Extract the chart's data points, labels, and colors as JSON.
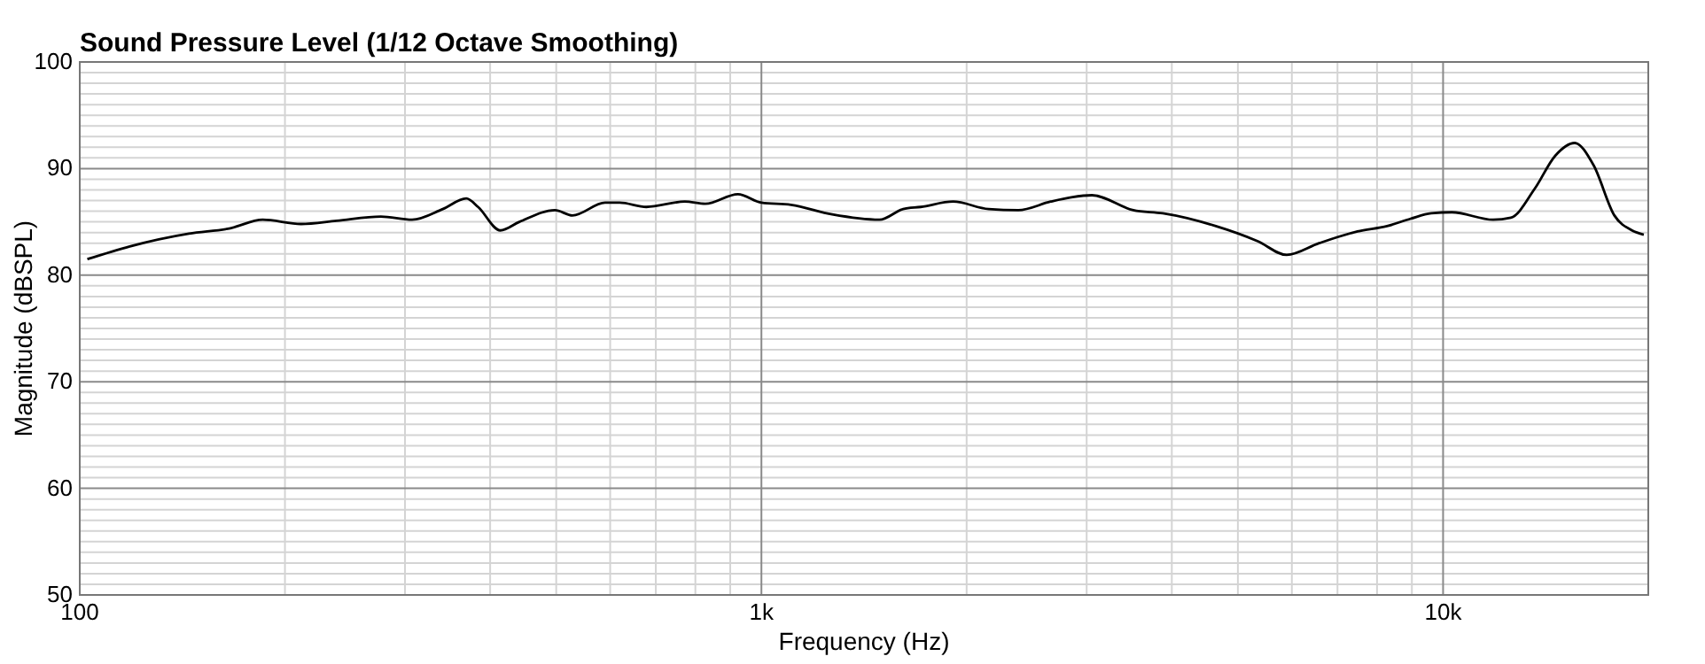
{
  "chart_data": {
    "type": "line",
    "title": "Sound Pressure Level (1/12 Octave Smoothing)",
    "xlabel": "Frequency (Hz)",
    "ylabel": "Magnitude (dBSPL)",
    "log": "x",
    "grid": true,
    "line_style": "solid",
    "x": [
      102.6,
      118.4,
      144.6,
      166.3,
      185.5,
      211.2,
      238,
      276.5,
      307.3,
      340.8,
      369,
      384,
      414,
      441.5,
      497.7,
      528.3,
      589.7,
      619.6,
      678,
      771.8,
      827.5,
      923.6,
      1000,
      1105,
      1270,
      1490,
      1614,
      1713,
      1911,
      2154,
      2381,
      2656,
      2848,
      3054,
      3512,
      3880,
      4642,
      5339,
      5897,
      6579,
      7489,
      8275,
      8965,
      9607,
      10304,
      11842,
      12576,
      13625,
      14604,
      15596,
      16630,
      17837,
      18930,
      19700
    ],
    "series": [
      {
        "color": "#000000",
        "values": [
          81.5,
          82.7,
          83.9,
          84.4,
          85.2,
          84.8,
          85.1,
          85.5,
          85.2,
          86.2,
          87.2,
          86.4,
          84.2,
          85.0,
          86.1,
          85.6,
          86.8,
          86.8,
          86.4,
          86.9,
          86.7,
          87.6,
          86.8,
          86.6,
          85.7,
          85.2,
          86.2,
          86.4,
          86.9,
          86.2,
          86.1,
          86.9,
          87.3,
          87.5,
          86.1,
          85.8,
          84.6,
          83.2,
          81.9,
          83.0,
          84.1,
          84.6,
          85.3,
          85.8,
          85.9,
          85.2,
          85.4,
          88.1,
          91.2,
          92.4,
          90.3,
          85.6,
          84.2,
          83.8
        ]
      }
    ],
    "xlim": [
      100,
      20000
    ],
    "ylim": [
      50,
      100
    ],
    "xticks": [
      100,
      {
        "value": 1000,
        "label": "1k"
      },
      {
        "value": 10000,
        "label": "10k"
      }
    ],
    "yticks": [
      50,
      60,
      70,
      80,
      90,
      100
    ]
  }
}
